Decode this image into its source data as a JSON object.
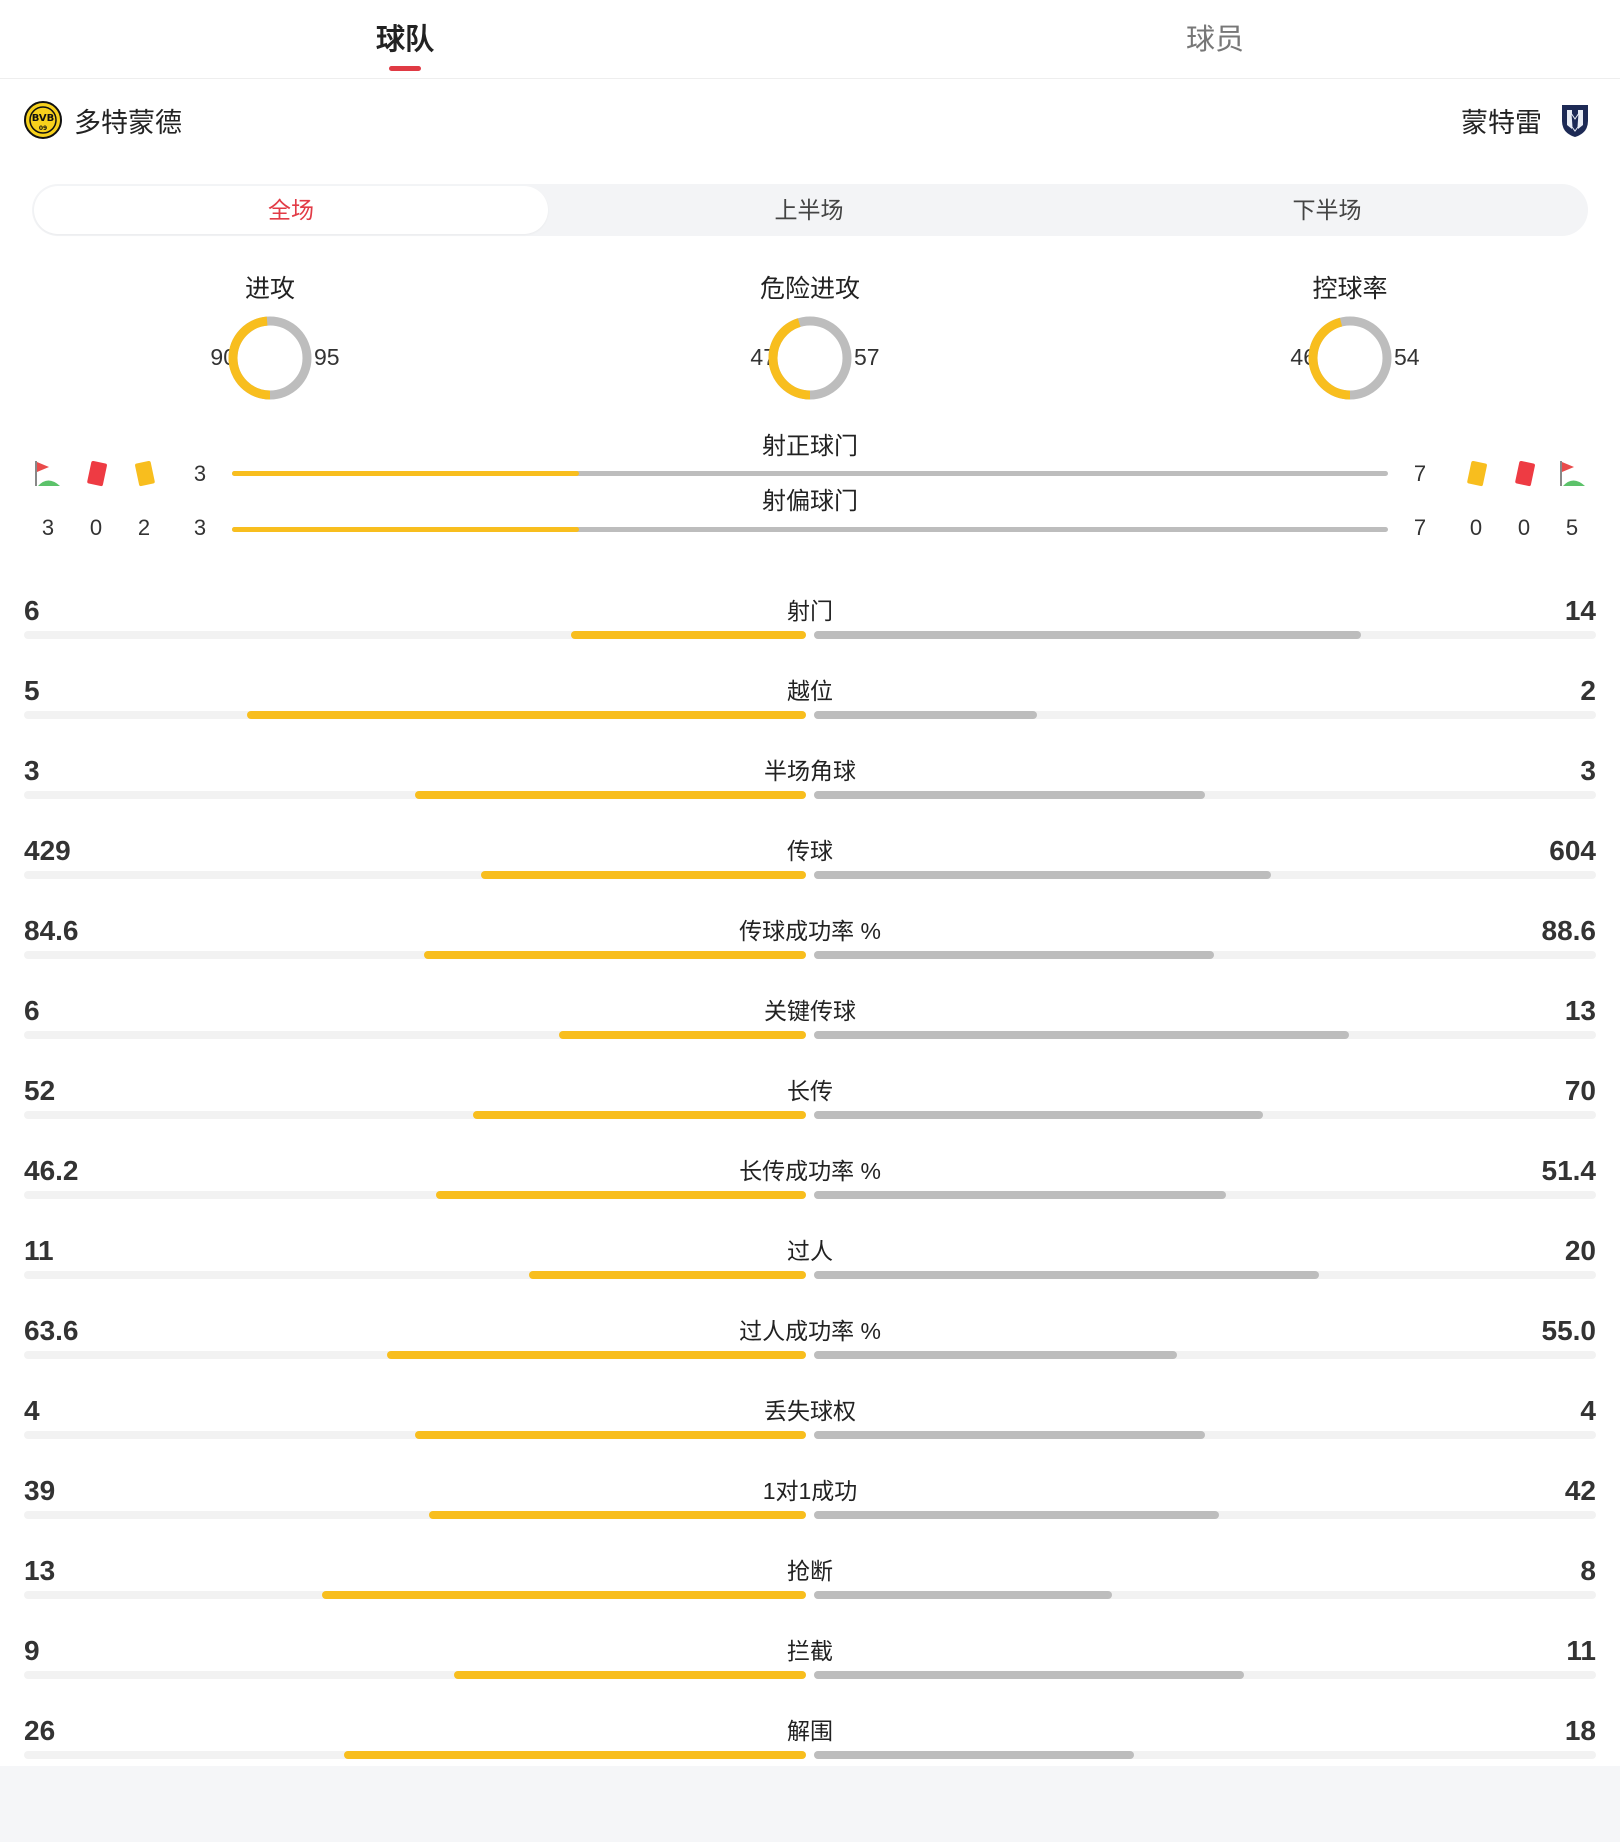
{
  "top_tabs": {
    "team": "球队",
    "player": "球员"
  },
  "teams": {
    "home": "多特蒙德",
    "away": "蒙特雷"
  },
  "periods": [
    "全场",
    "上半场",
    "下半场"
  ],
  "colors": {
    "home": "#f8be1e",
    "away": "#bdbdbd",
    "accent": "#e23b46"
  },
  "donuts": [
    {
      "title": "进攻",
      "home": "90",
      "away": "95"
    },
    {
      "title": "危险进攻",
      "home": "47",
      "away": "57"
    },
    {
      "title": "控球率",
      "home": "46",
      "away": "54"
    }
  ],
  "events": {
    "home": {
      "corners": "3",
      "red_cards": "0",
      "yellow_cards": "2"
    },
    "away": {
      "yellow_cards": "0",
      "red_cards": "0",
      "corners": "5"
    }
  },
  "shots": [
    {
      "label": "射正球门",
      "home": "3",
      "away": "7"
    },
    {
      "label": "射偏球门",
      "home": "3",
      "away": "7"
    }
  ],
  "stats": [
    {
      "label": "射门",
      "home": "6",
      "away": "14"
    },
    {
      "label": "越位",
      "home": "5",
      "away": "2"
    },
    {
      "label": "半场角球",
      "home": "3",
      "away": "3"
    },
    {
      "label": "传球",
      "home": "429",
      "away": "604"
    },
    {
      "label": "传球成功率 %",
      "home": "84.6",
      "away": "88.6"
    },
    {
      "label": "关键传球",
      "home": "6",
      "away": "13"
    },
    {
      "label": "长传",
      "home": "52",
      "away": "70"
    },
    {
      "label": "长传成功率 %",
      "home": "46.2",
      "away": "51.4"
    },
    {
      "label": "过人",
      "home": "11",
      "away": "20"
    },
    {
      "label": "过人成功率 %",
      "home": "63.6",
      "away": "55.0"
    },
    {
      "label": "丢失球权",
      "home": "4",
      "away": "4"
    },
    {
      "label": "1对1成功",
      "home": "39",
      "away": "42"
    },
    {
      "label": "抢断",
      "home": "13",
      "away": "8"
    },
    {
      "label": "拦截",
      "home": "9",
      "away": "11"
    },
    {
      "label": "解围",
      "home": "26",
      "away": "18"
    }
  ]
}
